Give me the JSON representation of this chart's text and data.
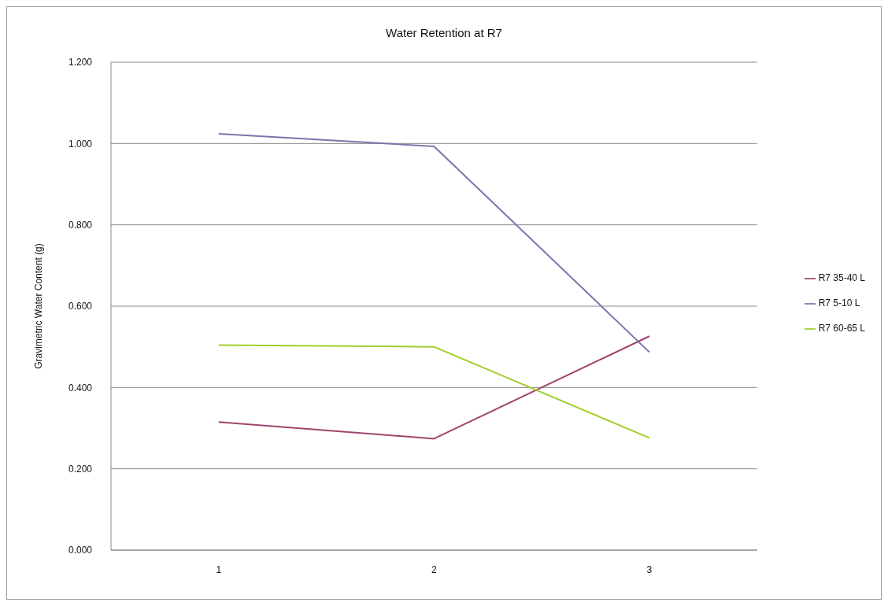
{
  "chart_data": {
    "type": "line",
    "title": "Water Retention at R7",
    "ylabel": "Gravimetric Water Content (g)",
    "categories": [
      "1",
      "2",
      "3"
    ],
    "series": [
      {
        "name": "R7 35-40 L",
        "color": "#a0446e",
        "values": [
          0.315,
          0.274,
          0.526
        ]
      },
      {
        "name": "R7 5-10 L",
        "color": "#7b74ac",
        "values": [
          1.024,
          0.993,
          0.487
        ]
      },
      {
        "name": "R7 60-65 L",
        "color": "#9fcf2c",
        "values": [
          0.504,
          0.5,
          0.276
        ]
      }
    ],
    "ylim": [
      0,
      1.2
    ],
    "yticks": [
      {
        "value": 0,
        "label": "0.000"
      },
      {
        "value": 0.2,
        "label": "0.200"
      },
      {
        "value": 0.4,
        "label": "0.400"
      },
      {
        "value": 0.6,
        "label": "0.600"
      },
      {
        "value": 0.8,
        "label": "0.800"
      },
      {
        "value": 1.0,
        "label": "1.000"
      },
      {
        "value": 1.2,
        "label": "1.200"
      }
    ],
    "grid": "y",
    "legend": "right",
    "marker": "none",
    "line_style": "solid"
  }
}
